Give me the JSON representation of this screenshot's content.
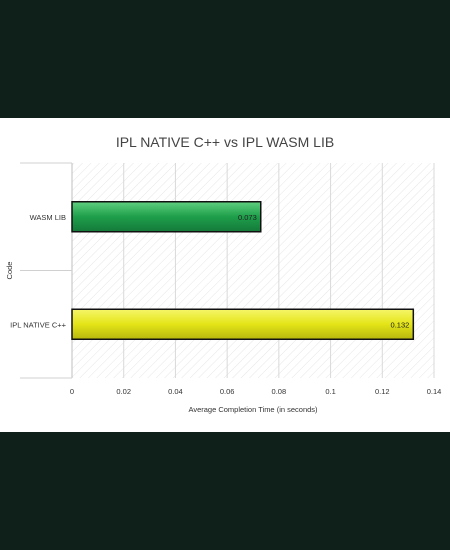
{
  "chart_data": {
    "type": "bar",
    "orientation": "horizontal",
    "title": "IPL NATIVE C++ vs IPL WASM LIB",
    "xlabel": "Average Completion Time (in seconds)",
    "ylabel": "Code",
    "categories": [
      "WASM LIB",
      "IPL NATIVE C++"
    ],
    "values": [
      0.073,
      0.132
    ],
    "data_labels": [
      "0.073",
      "0.132"
    ],
    "bar_colors": [
      "#1e9e4a",
      "#e4e418"
    ],
    "xlim": [
      0,
      0.14
    ],
    "xticks": [
      0,
      0.02,
      0.04,
      0.06,
      0.08,
      0.1,
      0.12,
      0.14
    ],
    "xtick_labels": [
      "0",
      "0.02",
      "0.04",
      "0.06",
      "0.08",
      "0.1",
      "0.12",
      "0.14"
    ],
    "grid": true,
    "legend": "none"
  },
  "colors": {
    "background_outer": "#0f1f1a",
    "plot_background": "#ffffff",
    "gridline": "#d9d9d9",
    "text": "#333333"
  }
}
